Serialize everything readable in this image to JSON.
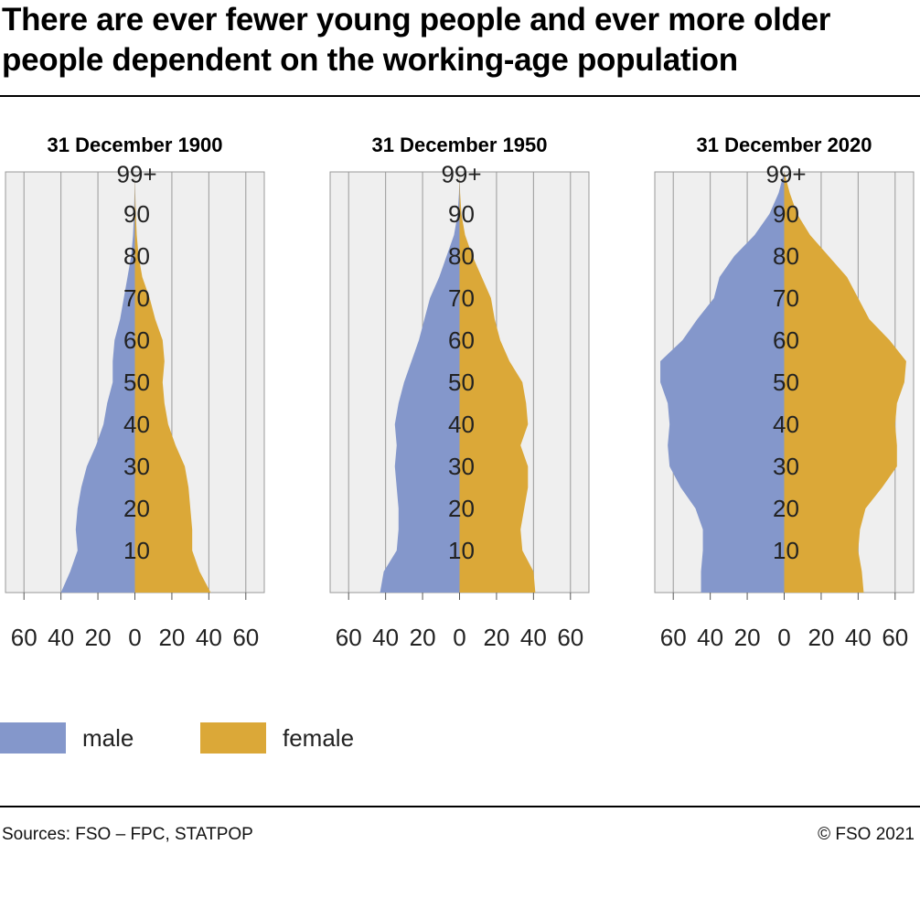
{
  "title": "There are ever fewer young people and ever more older people dependent on the working-age population",
  "footer": {
    "source": "Sources: FSO – FPC, STATPOP",
    "copyright": "© FSO 2021"
  },
  "legend": [
    {
      "label": "male",
      "color": "#8497cb"
    },
    {
      "label": "female",
      "color": "#dba838"
    }
  ],
  "colors": {
    "male": "#8497cb",
    "female": "#dba838",
    "plot_bg": "#efefef",
    "grid": "#999999"
  },
  "chart_data": [
    {
      "type": "area",
      "title": "31 December 1900",
      "age_ticks": [
        "99+",
        "90",
        "80",
        "70",
        "60",
        "50",
        "40",
        "30",
        "20",
        "10"
      ],
      "x_ticks": [
        "60",
        "40",
        "20",
        "0",
        "20",
        "40",
        "60"
      ],
      "xlim": [
        -70,
        70
      ],
      "ylim": [
        0,
        100
      ],
      "ages": [
        0,
        5,
        10,
        15,
        20,
        25,
        30,
        35,
        40,
        45,
        50,
        55,
        60,
        65,
        70,
        75,
        80,
        85,
        90,
        95,
        100
      ],
      "male": [
        40,
        35,
        31,
        32,
        31,
        29,
        26,
        21,
        17,
        15,
        12,
        12,
        11,
        8,
        6,
        4,
        2,
        1,
        0.5,
        0.2,
        0
      ],
      "female": [
        41,
        35,
        31,
        31,
        30,
        29,
        27,
        22,
        18,
        16,
        15,
        16,
        15,
        11,
        8,
        4,
        2,
        1,
        0.5,
        0.2,
        0
      ]
    },
    {
      "type": "area",
      "title": "31 December 1950",
      "age_ticks": [
        "99+",
        "90",
        "80",
        "70",
        "60",
        "50",
        "40",
        "30",
        "20",
        "10"
      ],
      "x_ticks": [
        "60",
        "40",
        "20",
        "0",
        "20",
        "40",
        "60"
      ],
      "xlim": [
        -70,
        70
      ],
      "ylim": [
        0,
        100
      ],
      "ages": [
        0,
        5,
        10,
        15,
        20,
        25,
        30,
        35,
        40,
        45,
        50,
        55,
        60,
        65,
        70,
        75,
        80,
        85,
        90,
        95,
        100
      ],
      "male": [
        43,
        41,
        34,
        33,
        33,
        34,
        35,
        34,
        35,
        33,
        30,
        26,
        22,
        19,
        16,
        11,
        7,
        3,
        1,
        0.3,
        0
      ],
      "female": [
        41,
        40,
        34,
        33,
        35,
        37,
        37,
        33,
        37,
        36,
        34,
        27,
        22,
        19,
        17,
        12,
        7,
        3,
        1,
        0.3,
        0
      ]
    },
    {
      "type": "area",
      "title": "31 December 2020",
      "age_ticks": [
        "99+",
        "90",
        "80",
        "70",
        "60",
        "50",
        "40",
        "30",
        "20",
        "10"
      ],
      "x_ticks": [
        "60",
        "40",
        "20",
        "0",
        "20",
        "40",
        "60"
      ],
      "xlim": [
        -70,
        70
      ],
      "ylim": [
        0,
        100
      ],
      "ages": [
        0,
        5,
        10,
        15,
        20,
        25,
        30,
        35,
        40,
        45,
        50,
        55,
        60,
        65,
        70,
        75,
        80,
        85,
        90,
        95,
        100
      ],
      "male": [
        45,
        45,
        44,
        44,
        48,
        56,
        62,
        63,
        62,
        63,
        67,
        67,
        55,
        47,
        38,
        35,
        27,
        16,
        8,
        3,
        0
      ],
      "female": [
        43,
        42,
        40,
        41,
        44,
        53,
        61,
        61,
        60,
        61,
        65,
        66,
        57,
        46,
        40,
        34,
        24,
        14,
        7,
        3,
        0
      ]
    }
  ]
}
